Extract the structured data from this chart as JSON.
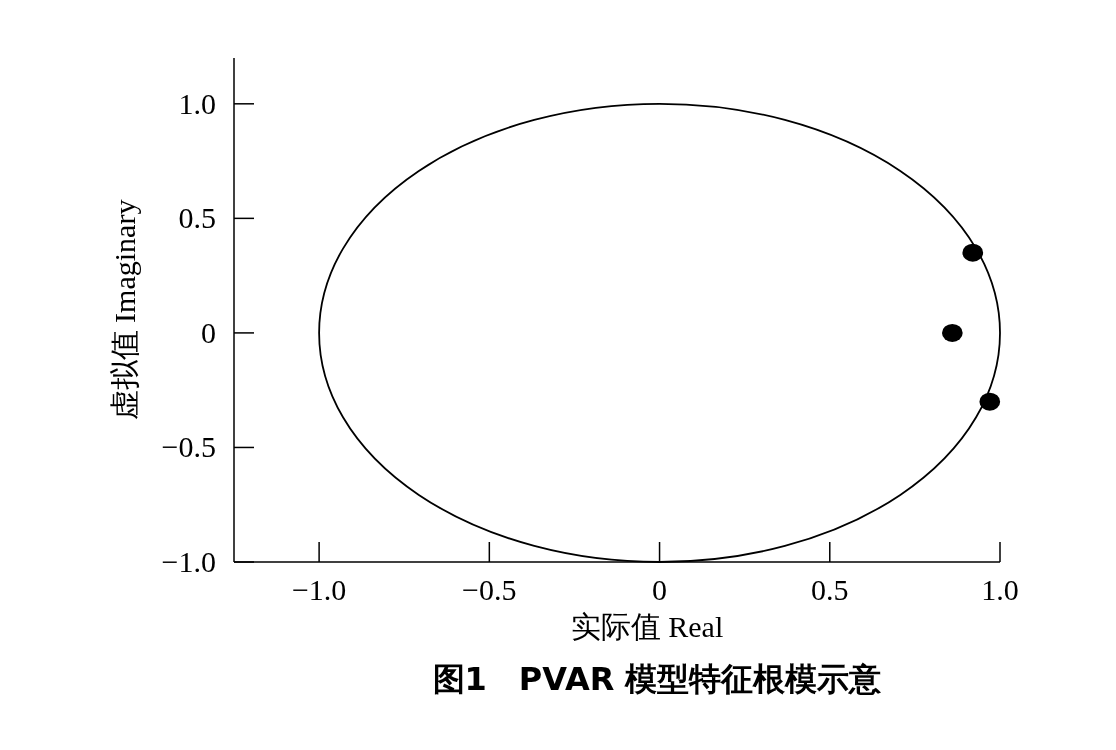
{
  "chart_data": {
    "type": "scatter",
    "title": "图1　PVAR 模型特征根模示意",
    "xlabel": "实际值 Real",
    "ylabel": "虚拟值 Imaginary",
    "xlim": [
      -1.25,
      1.0
    ],
    "ylim": [
      -1.0,
      1.2
    ],
    "xticks": [
      {
        "value": -1.0,
        "label": "−1.0"
      },
      {
        "value": -0.5,
        "label": "−0.5"
      },
      0,
      0.5,
      {
        "value": 1.0,
        "label": "1.0"
      }
    ],
    "yticks": [
      {
        "value": -1.0,
        "label": "−1.0"
      },
      {
        "value": -0.5,
        "label": "−0.5"
      },
      0,
      0.5,
      {
        "value": 1.0,
        "label": "1.0"
      }
    ],
    "grid": false,
    "marker": "circle",
    "series": [
      {
        "color": "#000000",
        "x": [
          0.92,
          0.86,
          0.97
        ],
        "values": [
          0.35,
          0,
          -0.3
        ]
      }
    ]
  }
}
